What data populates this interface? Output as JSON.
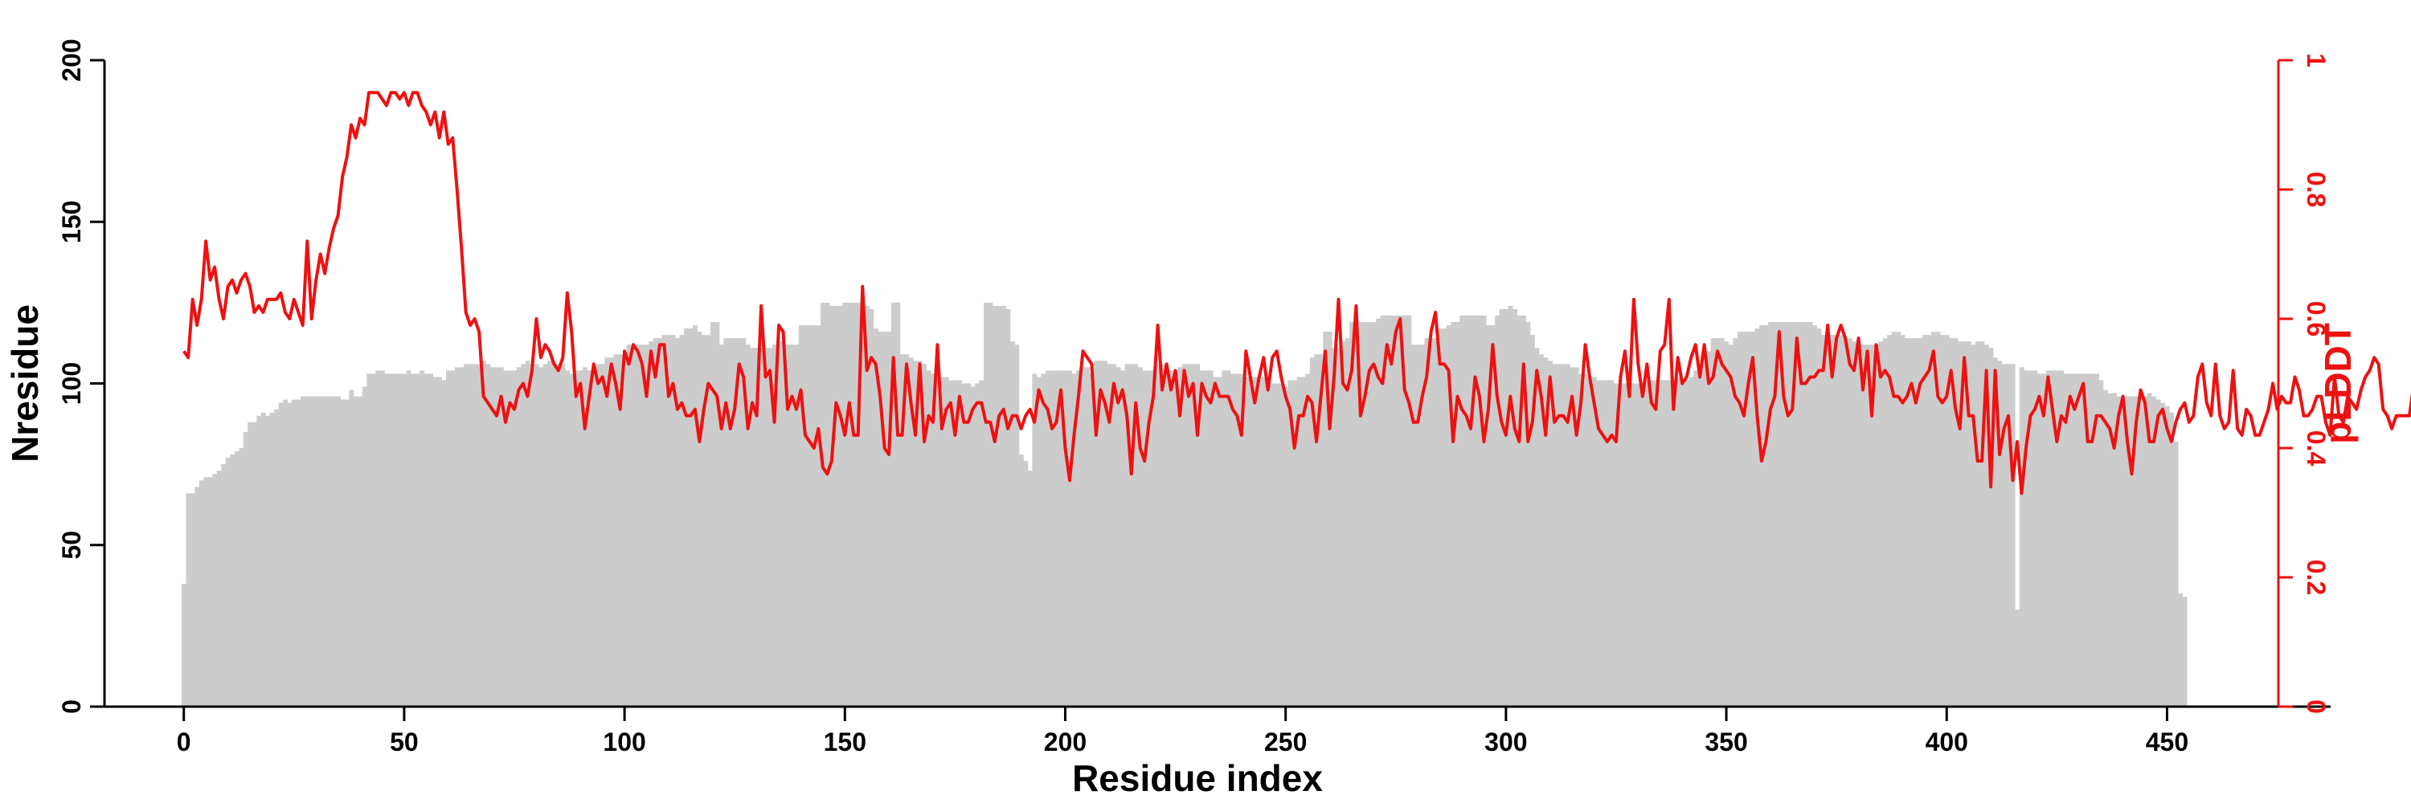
{
  "chart_data": {
    "type": "bar",
    "xlabel": "Residue index",
    "ylabel_left": "Nresidue",
    "ylabel_right": "pLDDT",
    "xlim": [
      -18,
      478
    ],
    "ylim_left": [
      0,
      200
    ],
    "ylim_right": [
      0,
      1
    ],
    "xticks": [
      0,
      50,
      100,
      150,
      200,
      250,
      300,
      350,
      400,
      450
    ],
    "yticks_left": [
      0,
      50,
      100,
      150,
      200
    ],
    "yticks_right": [
      0,
      0.2,
      0.4,
      0.6,
      0.8,
      1
    ],
    "ytick_labels_right": [
      "0",
      "0.2",
      "0.4",
      "0.6",
      "0.8",
      "1"
    ],
    "colors": {
      "bars": "#cccccc",
      "line": "#ee1111",
      "right_axis": "#ee1111",
      "left_axis": "#000000"
    },
    "series": [
      {
        "type": "bar",
        "axis": "left",
        "x_start": 0,
        "values": [
          38,
          66,
          66,
          68,
          70,
          71,
          71,
          72,
          73,
          75,
          77,
          78,
          79,
          80,
          85,
          88,
          88,
          90,
          91,
          90,
          91,
          92,
          94,
          95,
          94,
          95,
          95,
          96,
          96,
          96,
          96,
          96,
          96,
          96,
          96,
          96,
          95,
          95,
          98,
          96,
          96,
          99,
          103,
          103,
          104,
          104,
          103,
          103,
          103,
          103,
          103,
          104,
          103,
          103,
          104,
          103,
          103,
          102,
          102,
          101,
          104,
          104,
          105,
          105,
          106,
          106,
          106,
          106,
          107,
          106,
          105,
          105,
          105,
          104,
          104,
          104,
          105,
          106,
          107,
          106,
          106,
          105,
          106,
          107,
          107,
          106,
          106,
          104,
          103,
          104,
          104,
          105,
          104,
          104,
          106,
          106,
          108,
          108,
          109,
          109,
          108,
          112,
          112,
          112,
          112,
          112,
          113,
          114,
          114,
          115,
          115,
          115,
          114,
          115,
          117,
          117,
          118,
          116,
          115,
          115,
          119,
          119,
          112,
          114,
          114,
          114,
          114,
          114,
          112,
          111,
          111,
          111,
          111,
          111,
          112,
          113,
          113,
          112,
          112,
          112,
          118,
          118,
          118,
          118,
          118,
          125,
          125,
          124,
          124,
          124,
          125,
          125,
          125,
          125,
          125,
          124,
          123,
          117,
          116,
          116,
          116,
          125,
          125,
          109,
          109,
          108,
          107,
          107,
          106,
          104,
          103,
          103,
          102,
          102,
          101,
          101,
          101,
          100,
          100,
          99,
          100,
          101,
          125,
          125,
          124,
          124,
          124,
          123,
          113,
          112,
          78,
          76,
          73,
          103,
          102,
          103,
          104,
          104,
          104,
          104,
          104,
          104,
          103,
          104,
          105,
          105,
          103,
          107,
          107,
          107,
          106,
          106,
          105,
          104,
          106,
          106,
          106,
          105,
          104,
          104,
          104,
          106,
          106,
          105,
          104,
          104,
          105,
          106,
          106,
          106,
          106,
          104,
          104,
          104,
          102,
          102,
          104,
          104,
          103,
          103,
          103,
          102,
          102,
          102,
          102,
          102,
          100,
          100,
          100,
          100,
          99,
          101,
          101,
          102,
          102,
          103,
          108,
          109,
          109,
          116,
          116,
          111,
          111,
          113,
          114,
          119,
          119,
          119,
          119,
          119,
          119,
          120,
          121,
          121,
          121,
          121,
          121,
          121,
          121,
          112,
          112,
          112,
          114,
          114,
          114,
          117,
          117,
          118,
          119,
          119,
          121,
          121,
          121,
          121,
          121,
          121,
          118,
          118,
          121,
          123,
          123,
          124,
          123,
          121,
          121,
          119,
          115,
          111,
          109,
          108,
          107,
          106,
          106,
          106,
          106,
          105,
          105,
          103,
          103,
          102,
          102,
          101,
          101,
          101,
          101,
          100,
          100,
          100,
          100,
          100,
          100,
          100,
          101,
          101,
          101,
          101,
          101,
          101,
          101,
          102,
          101,
          101,
          102,
          104,
          106,
          108,
          110,
          114,
          114,
          114,
          113,
          112,
          114,
          116,
          116,
          116,
          116,
          117,
          118,
          118,
          119,
          119,
          119,
          119,
          119,
          119,
          119,
          119,
          119,
          119,
          118,
          117,
          115,
          114,
          115,
          115,
          115,
          114,
          114,
          113,
          113,
          112,
          112,
          112,
          112,
          113,
          114,
          115,
          116,
          116,
          115,
          114,
          114,
          114,
          114,
          115,
          115,
          116,
          116,
          115,
          115,
          114,
          114,
          113,
          113,
          113,
          112,
          113,
          113,
          112,
          111,
          108,
          107,
          106,
          106,
          106,
          30,
          105,
          104,
          104,
          104,
          103,
          103,
          104,
          104,
          104,
          104,
          103,
          103,
          103,
          103,
          103,
          103,
          103,
          103,
          101,
          98,
          97,
          97,
          96,
          96,
          96,
          96,
          96,
          96,
          96,
          97,
          96,
          95,
          94,
          93,
          91,
          82,
          35,
          34
        ]
      },
      {
        "type": "line",
        "axis": "right",
        "x_start": 0,
        "values": [
          0.55,
          0.54,
          0.63,
          0.59,
          0.63,
          0.72,
          0.66,
          0.68,
          0.63,
          0.6,
          0.65,
          0.66,
          0.64,
          0.66,
          0.67,
          0.65,
          0.61,
          0.62,
          0.61,
          0.63,
          0.63,
          0.63,
          0.64,
          0.61,
          0.6,
          0.63,
          0.61,
          0.59,
          0.72,
          0.6,
          0.66,
          0.7,
          0.67,
          0.71,
          0.74,
          0.76,
          0.82,
          0.85,
          0.9,
          0.88,
          0.91,
          0.9,
          0.95,
          0.95,
          0.95,
          0.94,
          0.93,
          0.95,
          0.95,
          0.94,
          0.95,
          0.93,
          0.95,
          0.95,
          0.93,
          0.92,
          0.9,
          0.92,
          0.88,
          0.92,
          0.87,
          0.88,
          0.8,
          0.71,
          0.61,
          0.59,
          0.6,
          0.58,
          0.48,
          0.47,
          0.46,
          0.45,
          0.48,
          0.44,
          0.47,
          0.46,
          0.49,
          0.5,
          0.48,
          0.52,
          0.6,
          0.54,
          0.56,
          0.55,
          0.53,
          0.52,
          0.54,
          0.64,
          0.58,
          0.48,
          0.5,
          0.43,
          0.48,
          0.53,
          0.5,
          0.51,
          0.48,
          0.53,
          0.5,
          0.46,
          0.55,
          0.53,
          0.56,
          0.55,
          0.53,
          0.48,
          0.55,
          0.51,
          0.56,
          0.56,
          0.48,
          0.5,
          0.46,
          0.47,
          0.45,
          0.45,
          0.46,
          0.41,
          0.46,
          0.5,
          0.49,
          0.48,
          0.43,
          0.47,
          0.43,
          0.46,
          0.53,
          0.51,
          0.43,
          0.47,
          0.45,
          0.62,
          0.51,
          0.52,
          0.44,
          0.59,
          0.58,
          0.46,
          0.48,
          0.46,
          0.49,
          0.42,
          0.41,
          0.4,
          0.43,
          0.37,
          0.36,
          0.38,
          0.47,
          0.45,
          0.42,
          0.47,
          0.42,
          0.42,
          0.65,
          0.52,
          0.54,
          0.53,
          0.48,
          0.4,
          0.39,
          0.54,
          0.42,
          0.42,
          0.53,
          0.47,
          0.42,
          0.53,
          0.41,
          0.45,
          0.44,
          0.56,
          0.43,
          0.46,
          0.47,
          0.42,
          0.48,
          0.44,
          0.44,
          0.46,
          0.47,
          0.47,
          0.44,
          0.44,
          0.41,
          0.45,
          0.46,
          0.43,
          0.45,
          0.45,
          0.43,
          0.45,
          0.46,
          0.44,
          0.49,
          0.47,
          0.46,
          0.43,
          0.44,
          0.49,
          0.4,
          0.35,
          0.42,
          0.48,
          0.55,
          0.54,
          0.53,
          0.42,
          0.49,
          0.47,
          0.44,
          0.5,
          0.47,
          0.49,
          0.45,
          0.36,
          0.47,
          0.4,
          0.38,
          0.44,
          0.48,
          0.59,
          0.49,
          0.53,
          0.49,
          0.52,
          0.45,
          0.52,
          0.48,
          0.5,
          0.42,
          0.5,
          0.48,
          0.47,
          0.5,
          0.48,
          0.48,
          0.48,
          0.46,
          0.45,
          0.42,
          0.55,
          0.51,
          0.47,
          0.51,
          0.54,
          0.49,
          0.54,
          0.55,
          0.51,
          0.48,
          0.46,
          0.4,
          0.45,
          0.45,
          0.48,
          0.47,
          0.41,
          0.48,
          0.55,
          0.43,
          0.51,
          0.63,
          0.5,
          0.49,
          0.52,
          0.62,
          0.45,
          0.48,
          0.52,
          0.53,
          0.51,
          0.5,
          0.56,
          0.53,
          0.58,
          0.6,
          0.49,
          0.47,
          0.44,
          0.44,
          0.48,
          0.51,
          0.58,
          0.61,
          0.53,
          0.53,
          0.52,
          0.41,
          0.48,
          0.46,
          0.45,
          0.43,
          0.51,
          0.48,
          0.41,
          0.46,
          0.56,
          0.48,
          0.44,
          0.42,
          0.48,
          0.43,
          0.41,
          0.53,
          0.41,
          0.44,
          0.52,
          0.48,
          0.42,
          0.51,
          0.44,
          0.45,
          0.45,
          0.44,
          0.48,
          0.42,
          0.47,
          0.56,
          0.51,
          0.47,
          0.43,
          0.42,
          0.41,
          0.42,
          0.41,
          0.51,
          0.55,
          0.48,
          0.63,
          0.53,
          0.48,
          0.53,
          0.47,
          0.46,
          0.55,
          0.56,
          0.63,
          0.46,
          0.54,
          0.5,
          0.51,
          0.54,
          0.56,
          0.51,
          0.56,
          0.5,
          0.51,
          0.55,
          0.53,
          0.52,
          0.51,
          0.48,
          0.47,
          0.45,
          0.5,
          0.54,
          0.45,
          0.38,
          0.41,
          0.46,
          0.48,
          0.58,
          0.48,
          0.45,
          0.46,
          0.57,
          0.5,
          0.5,
          0.51,
          0.51,
          0.52,
          0.52,
          0.59,
          0.51,
          0.57,
          0.59,
          0.57,
          0.53,
          0.52,
          0.57,
          0.49,
          0.55,
          0.45,
          0.56,
          0.51,
          0.52,
          0.51,
          0.48,
          0.48,
          0.47,
          0.48,
          0.5,
          0.47,
          0.5,
          0.51,
          0.52,
          0.55,
          0.48,
          0.47,
          0.48,
          0.52,
          0.46,
          0.43,
          0.54,
          0.45,
          0.45,
          0.38,
          0.38,
          0.52,
          0.34,
          0.52,
          0.39,
          0.43,
          0.45,
          0.35,
          0.41,
          0.33,
          0.4,
          0.45,
          0.46,
          0.48,
          0.45,
          0.51,
          0.46,
          0.41,
          0.45,
          0.44,
          0.48,
          0.46,
          0.48,
          0.5,
          0.41,
          0.41,
          0.45,
          0.45,
          0.44,
          0.43,
          0.4,
          0.45,
          0.48,
          0.41,
          0.36,
          0.44,
          0.49,
          0.47,
          0.41,
          0.41,
          0.45,
          0.46,
          0.43,
          0.41,
          0.44,
          0.46,
          0.47,
          0.44,
          0.45,
          0.51,
          0.53,
          0.47,
          0.45,
          0.53,
          0.45,
          0.43,
          0.44,
          0.52,
          0.43,
          0.42,
          0.46,
          0.45,
          0.42,
          0.42,
          0.44,
          0.46,
          0.5,
          0.46,
          0.48,
          0.47,
          0.47,
          0.51,
          0.49,
          0.45,
          0.45,
          0.46,
          0.48,
          0.48,
          0.44,
          0.42,
          0.51,
          0.45,
          0.44,
          0.48,
          0.47,
          0.46,
          0.49,
          0.51,
          0.52,
          0.54,
          0.53,
          0.46,
          0.45,
          0.43,
          0.45,
          0.45,
          0.45,
          0.45,
          0.5,
          0.47
        ]
      }
    ]
  }
}
